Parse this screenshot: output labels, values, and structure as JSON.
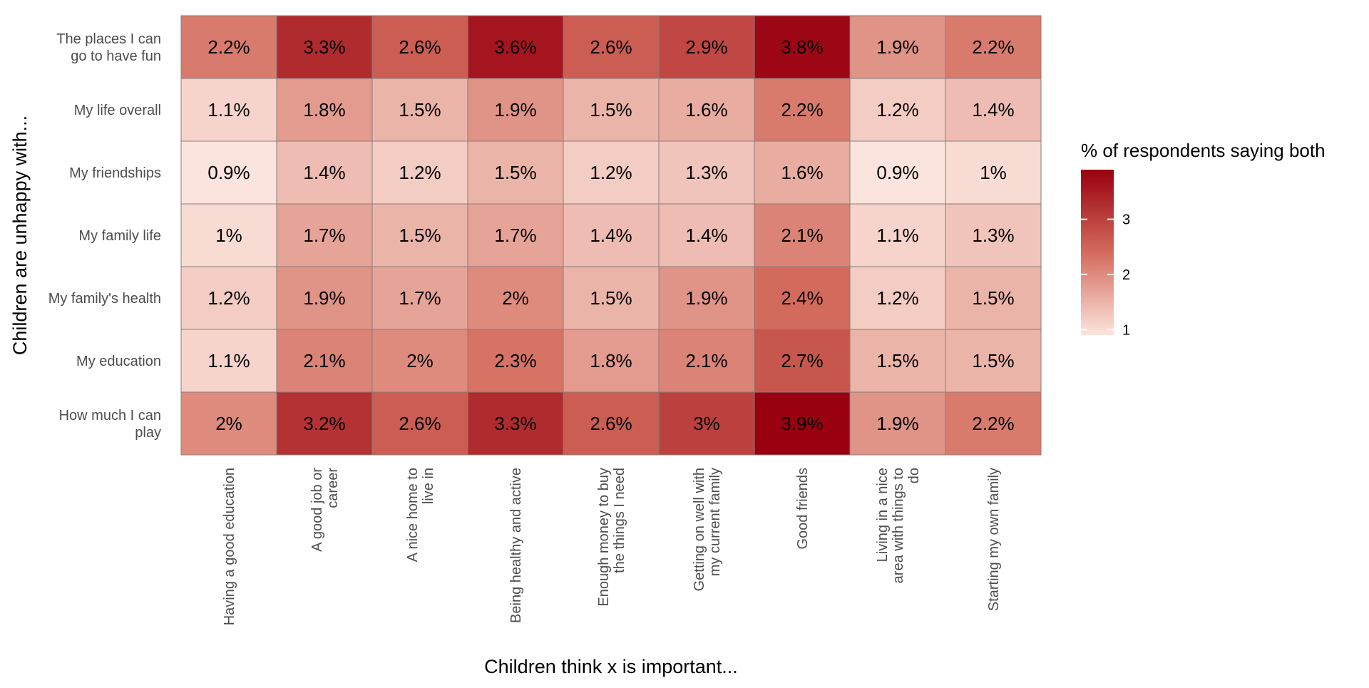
{
  "chart_data": {
    "type": "heatmap",
    "title": "",
    "xlabel": "Children think x is important...",
    "ylabel": "Children are unhappy with...",
    "x_categories": [
      [
        "Having a good education"
      ],
      [
        "A good job or",
        "career"
      ],
      [
        "A nice home to",
        "live in"
      ],
      [
        "Being healthy and active"
      ],
      [
        "Enough money to buy",
        "the things I need"
      ],
      [
        "Getting on well with",
        "my current family"
      ],
      [
        "Good friends"
      ],
      [
        "Living in a nice",
        "area with things to",
        "do"
      ],
      [
        "Starting my own family"
      ]
    ],
    "y_categories": [
      [
        "The places I can",
        "go to have fun"
      ],
      [
        "My life overall"
      ],
      [
        "My friendships"
      ],
      [
        "My family life"
      ],
      [
        "My family's health"
      ],
      [
        "My education"
      ],
      [
        "How much I can",
        "play"
      ]
    ],
    "values": [
      [
        2.2,
        3.3,
        2.6,
        3.6,
        2.6,
        2.9,
        3.8,
        1.9,
        2.2
      ],
      [
        1.1,
        1.8,
        1.5,
        1.9,
        1.5,
        1.6,
        2.2,
        1.2,
        1.4
      ],
      [
        0.9,
        1.4,
        1.2,
        1.5,
        1.2,
        1.3,
        1.6,
        0.9,
        1.0
      ],
      [
        1.0,
        1.7,
        1.5,
        1.7,
        1.4,
        1.4,
        2.1,
        1.1,
        1.3
      ],
      [
        1.2,
        1.9,
        1.7,
        2.0,
        1.5,
        1.9,
        2.4,
        1.2,
        1.5
      ],
      [
        1.1,
        2.1,
        2.0,
        2.3,
        1.8,
        2.1,
        2.7,
        1.5,
        1.5
      ],
      [
        2.0,
        3.2,
        2.6,
        3.3,
        2.6,
        3.0,
        3.9,
        1.9,
        2.2
      ]
    ],
    "cell_labels": [
      [
        "2.2%",
        "3.3%",
        "2.6%",
        "3.6%",
        "2.6%",
        "2.9%",
        "3.8%",
        "1.9%",
        "2.2%"
      ],
      [
        "1.1%",
        "1.8%",
        "1.5%",
        "1.9%",
        "1.5%",
        "1.6%",
        "2.2%",
        "1.2%",
        "1.4%"
      ],
      [
        "0.9%",
        "1.4%",
        "1.2%",
        "1.5%",
        "1.2%",
        "1.3%",
        "1.6%",
        "0.9%",
        "1%"
      ],
      [
        "1%",
        "1.7%",
        "1.5%",
        "1.7%",
        "1.4%",
        "1.4%",
        "2.1%",
        "1.1%",
        "1.3%"
      ],
      [
        "1.2%",
        "1.9%",
        "1.7%",
        "2%",
        "1.5%",
        "1.9%",
        "2.4%",
        "1.2%",
        "1.5%"
      ],
      [
        "1.1%",
        "2.1%",
        "2%",
        "2.3%",
        "1.8%",
        "2.1%",
        "2.7%",
        "1.5%",
        "1.5%"
      ],
      [
        "2%",
        "3.2%",
        "2.6%",
        "3.3%",
        "2.6%",
        "3%",
        "3.9%",
        "1.9%",
        "2.2%"
      ]
    ],
    "legend": {
      "title": "% of respondents saying both",
      "placement": "right",
      "ticks": [
        1,
        2,
        3
      ],
      "range": [
        0.9,
        3.9
      ],
      "color_low": "#fbe4dd",
      "color_high": "#990010"
    },
    "grid": false
  }
}
